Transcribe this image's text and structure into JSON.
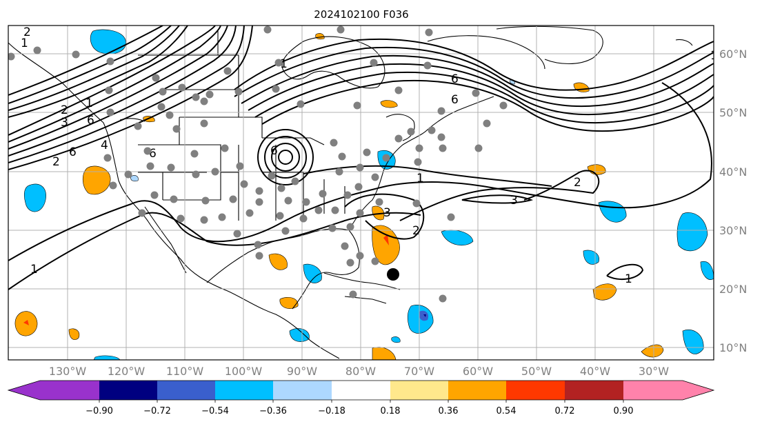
{
  "title": "2024102100 F036",
  "map": {
    "lon_labels": [
      "130°W",
      "120°W",
      "110°W",
      "100°W",
      "90°W",
      "80°W",
      "70°W",
      "60°W",
      "50°W",
      "40°W",
      "30°W"
    ],
    "lat_labels": [
      "60°N",
      "50°N",
      "40°N",
      "30°N",
      "20°N",
      "10°N"
    ],
    "contour_labels": [
      "2",
      "1",
      "2",
      "3",
      "6",
      "1",
      "2",
      "6",
      "4",
      "6",
      "1",
      "6",
      "6",
      "6",
      "1",
      "1",
      "3",
      "2",
      "3",
      "2",
      "1",
      "1",
      "2",
      "3"
    ],
    "marker": "storm-center"
  },
  "colorbar": {
    "ticks": [
      "−0.90",
      "−0.72",
      "−0.54",
      "−0.36",
      "−0.18",
      "0.18",
      "0.36",
      "0.54",
      "0.72",
      "0.90"
    ],
    "colors": [
      "#9932cc",
      "#000080",
      "#3a5fcd",
      "#00bfff",
      "#add8ff",
      "#ffffff",
      "#ffe88c",
      "#ffa500",
      "#ff3800",
      "#b22222",
      "#ff82ab"
    ]
  }
}
